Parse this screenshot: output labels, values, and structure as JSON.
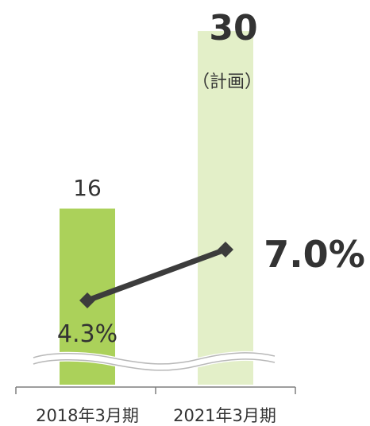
{
  "chart_data": {
    "type": "bar",
    "categories": [
      "2018年3月期",
      "2021年3月期"
    ],
    "series": [
      {
        "values": [
          16,
          30
        ],
        "colors": [
          "#abd15a",
          "#e3efc8"
        ],
        "value_labels": [
          "16",
          "30"
        ],
        "annotations": [
          "",
          "（計画）"
        ]
      },
      {
        "type": "line",
        "values": [
          4.3,
          7.0
        ],
        "value_labels": [
          "4.3%",
          "7.0%"
        ],
        "color": "#3c3c3c",
        "marker": "diamond"
      }
    ],
    "axis_break": true,
    "grid": false,
    "legend": "none"
  }
}
